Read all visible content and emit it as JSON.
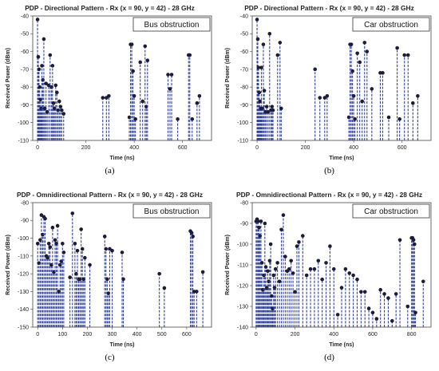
{
  "chart_data": [
    {
      "type": "stem",
      "panel_label": "(a)",
      "title": "PDP - Directional Pattern - Rx (x = 90, y = 42) - 28 GHz",
      "legend": "Bus obstruction",
      "xlabel": "Time (ns)",
      "ylabel": "Received Power (dBm)",
      "xlim": [
        -20,
        720
      ],
      "ylim": [
        -110,
        -40
      ],
      "xticks": [
        0,
        200,
        400,
        600
      ],
      "yticks": [
        -40,
        -50,
        -60,
        -70,
        -80,
        -90,
        -100,
        -110
      ],
      "color": "#2e3f9e",
      "x": [
        0,
        3,
        6,
        9,
        12,
        15,
        18,
        22,
        26,
        30,
        35,
        40,
        46,
        52,
        58,
        62,
        66,
        70,
        75,
        80,
        85,
        90,
        95,
        100,
        108,
        270,
        285,
        295,
        380,
        385,
        390,
        395,
        400,
        405,
        425,
        435,
        445,
        450,
        455,
        540,
        548,
        555,
        580,
        625,
        630,
        640,
        660,
        670
      ],
      "y": [
        -42,
        -63,
        -70,
        -80,
        -87,
        -92,
        -68,
        -76,
        -53,
        -92,
        -78,
        -94,
        -79,
        -62,
        -80,
        -68,
        -89,
        -92,
        -79,
        -83,
        -93,
        -88,
        -91,
        -93,
        -95,
        -86,
        -86,
        -85,
        -97,
        -56,
        -56,
        -71,
        -85,
        -98,
        -66,
        -88,
        -57,
        -91,
        -65,
        -73,
        -81,
        -73,
        -98,
        -62,
        -62,
        -98,
        -89,
        -85
      ]
    },
    {
      "type": "stem",
      "panel_label": "(b)",
      "title": "PDP - Directional Pattern - Rx (x = 90, y = 42) - 28 GHz",
      "legend": "Car obstruction",
      "xlabel": "Time (ns)",
      "ylabel": "Received Power (dBm)",
      "xlim": [
        -20,
        720
      ],
      "ylim": [
        -110,
        -40
      ],
      "xticks": [
        0,
        200,
        400,
        600
      ],
      "yticks": [
        -40,
        -50,
        -60,
        -70,
        -80,
        -90,
        -100,
        -110
      ],
      "color": "#2e3f9e",
      "x": [
        0,
        3,
        6,
        9,
        12,
        15,
        18,
        22,
        26,
        30,
        35,
        40,
        46,
        52,
        58,
        62,
        66,
        85,
        95,
        100,
        240,
        260,
        280,
        290,
        380,
        385,
        390,
        395,
        400,
        405,
        415,
        425,
        435,
        445,
        455,
        475,
        510,
        520,
        545,
        580,
        590,
        610,
        625,
        645,
        665
      ],
      "y": [
        -42,
        -53,
        -69,
        -83,
        -88,
        -92,
        -69,
        -92,
        -56,
        -82,
        -94,
        -91,
        -94,
        -50,
        -93,
        -91,
        -93,
        -62,
        -55,
        -92,
        -70,
        -86,
        -86,
        -85,
        -97,
        -56,
        -56,
        -71,
        -85,
        -98,
        -61,
        -66,
        -88,
        -55,
        -60,
        -81,
        -72,
        -72,
        -97,
        -58,
        -98,
        -62,
        -62,
        -89,
        -85
      ]
    },
    {
      "type": "stem",
      "panel_label": "(c)",
      "title": "PDP - Omnidirectional Pattern - Rx (x = 90, y = 42) - 28 GHz",
      "legend": "Bus obstruction",
      "xlabel": "Time (ns)",
      "ylabel": "Received Power (dBm)",
      "xlim": [
        -20,
        700
      ],
      "ylim": [
        -150,
        -80
      ],
      "xticks": [
        0,
        100,
        200,
        300,
        400,
        500,
        600
      ],
      "yticks": [
        -80,
        -90,
        -100,
        -110,
        -120,
        -130,
        -140,
        -150
      ],
      "color": "#2e3f9e",
      "x": [
        0,
        5,
        10,
        15,
        20,
        25,
        30,
        35,
        40,
        45,
        50,
        55,
        60,
        65,
        70,
        75,
        80,
        85,
        90,
        95,
        100,
        105,
        130,
        140,
        150,
        155,
        160,
        165,
        170,
        175,
        180,
        185,
        190,
        210,
        270,
        275,
        280,
        285,
        290,
        300,
        340,
        345,
        490,
        510,
        615,
        620,
        625,
        630,
        640,
        665
      ],
      "y": [
        -103,
        -114,
        -101,
        -87,
        -98,
        -88,
        -89,
        -110,
        -111,
        -103,
        -105,
        -115,
        -94,
        -119,
        -101,
        -103,
        -93,
        -130,
        -115,
        -113,
        -103,
        -108,
        -122,
        -86,
        -103,
        -120,
        -107,
        -123,
        -123,
        -95,
        -106,
        -123,
        -111,
        -115,
        -99,
        -106,
        -123,
        -131,
        -106,
        -107,
        -108,
        -123,
        -120,
        -128,
        -96,
        -97,
        -99,
        -130,
        -130,
        -119
      ]
    },
    {
      "type": "stem",
      "panel_label": "(d)",
      "title": "PDP - Omnidirectional Pattern - Rx (x = 90, y = 42) - 28 GHz",
      "legend": "Car obstruction",
      "xlabel": "Time (ns)",
      "ylabel": "Received Power (dBm)",
      "xlim": [
        -20,
        900
      ],
      "ylim": [
        -140,
        -80
      ],
      "xticks": [
        0,
        200,
        400,
        600,
        800
      ],
      "yticks": [
        -80,
        -90,
        -100,
        -110,
        -120,
        -130,
        -140
      ],
      "color": "#2e3f9e",
      "x": [
        0,
        5,
        10,
        15,
        20,
        25,
        30,
        35,
        40,
        45,
        50,
        55,
        60,
        65,
        70,
        75,
        80,
        85,
        90,
        95,
        100,
        110,
        120,
        130,
        140,
        150,
        160,
        170,
        180,
        190,
        200,
        210,
        220,
        240,
        260,
        280,
        300,
        320,
        340,
        360,
        380,
        400,
        420,
        440,
        460,
        480,
        500,
        520,
        540,
        560,
        580,
        600,
        620,
        640,
        660,
        680,
        700,
        720,
        740,
        780,
        800,
        805,
        810,
        815,
        820,
        860
      ],
      "y": [
        -89,
        -88,
        -89,
        -92,
        -96,
        -89,
        -109,
        -122,
        -115,
        -90,
        -111,
        -121,
        -113,
        -118,
        -108,
        -100,
        -125,
        -131,
        -115,
        -121,
        -112,
        -109,
        -118,
        -93,
        -86,
        -106,
        -113,
        -112,
        -108,
        -114,
        -123,
        -101,
        -99,
        -96,
        -115,
        -112,
        -112,
        -108,
        -117,
        -109,
        -101,
        -112,
        -134,
        -121,
        -112,
        -114,
        -115,
        -117,
        -123,
        -123,
        -131,
        -133,
        -136,
        -122,
        -124,
        -126,
        -137,
        -124,
        -98,
        -130,
        -97,
        -97,
        -98,
        -100,
        -133,
        -118
      ]
    }
  ]
}
